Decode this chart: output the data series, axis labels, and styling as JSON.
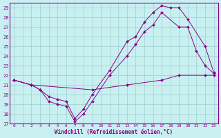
{
  "xlabel": "Windchill (Refroidissement éolien,°C)",
  "xlim": [
    -0.5,
    23.5
  ],
  "ylim": [
    17,
    29.5
  ],
  "yticks": [
    17,
    18,
    19,
    20,
    21,
    22,
    23,
    24,
    25,
    26,
    27,
    28,
    29
  ],
  "xticks": [
    0,
    1,
    2,
    3,
    4,
    5,
    6,
    7,
    8,
    9,
    10,
    11,
    12,
    13,
    14,
    15,
    16,
    17,
    18,
    19,
    20,
    21,
    22,
    23
  ],
  "bg_color": "#c8f0f0",
  "line_color": "#880088",
  "grid_color": "#9ecece",
  "lines": [
    {
      "x": [
        0,
        2,
        9,
        13,
        17,
        19,
        22,
        23
      ],
      "y": [
        21.5,
        21.0,
        20.5,
        21.0,
        21.5,
        22.0,
        22.0,
        22.0
      ]
    },
    {
      "x": [
        0,
        2,
        3,
        4,
        5,
        6,
        7,
        8,
        9,
        11,
        13,
        14,
        15,
        16,
        17,
        19,
        20,
        21,
        22,
        23
      ],
      "y": [
        21.5,
        21.0,
        20.5,
        19.3,
        19.0,
        18.8,
        17.2,
        18.0,
        19.3,
        22.0,
        24.0,
        25.2,
        26.5,
        27.2,
        28.5,
        27.0,
        27.0,
        24.5,
        23.0,
        22.2
      ]
    },
    {
      "x": [
        0,
        2,
        3,
        4,
        5,
        6,
        7,
        8,
        9,
        11,
        13,
        14,
        15,
        16,
        17,
        18,
        19,
        20,
        22,
        23
      ],
      "y": [
        21.5,
        21.0,
        20.5,
        19.8,
        19.5,
        19.3,
        17.5,
        18.5,
        20.0,
        22.5,
        25.5,
        26.0,
        27.5,
        28.5,
        29.2,
        29.0,
        29.0,
        27.8,
        25.0,
        22.3
      ]
    }
  ]
}
